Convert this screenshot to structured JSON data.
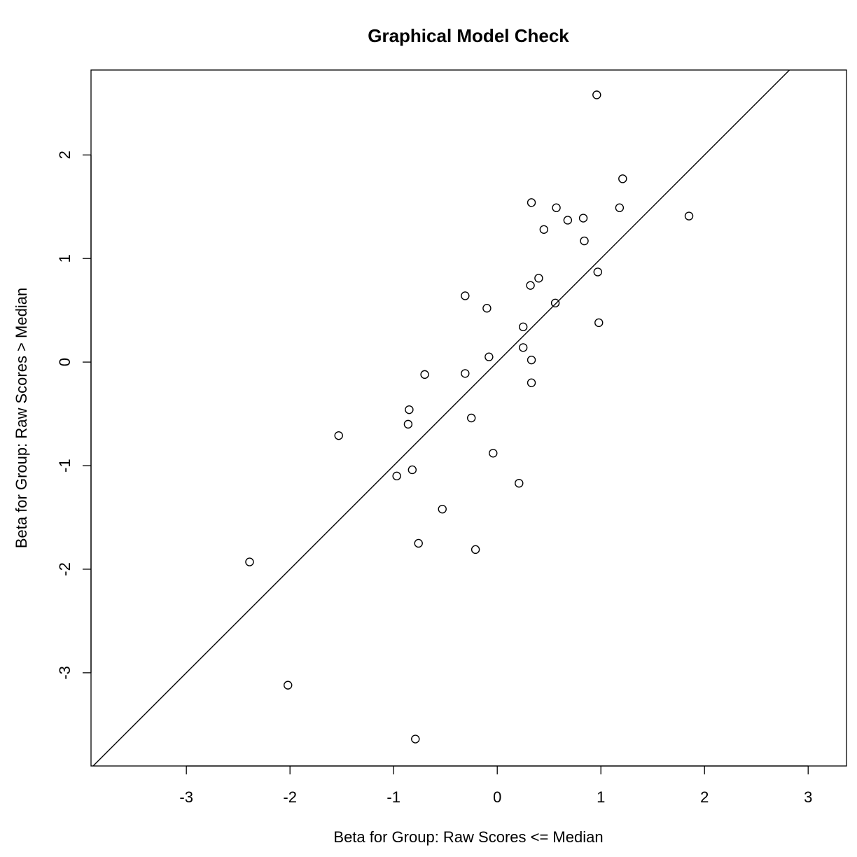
{
  "chart_data": {
    "type": "scatter",
    "title": "Graphical Model Check",
    "xlabel": "Beta for Group: Raw Scores <= Median",
    "ylabel": "Beta for Group: Raw Scores > Median",
    "xlim": [
      -3.92,
      3.37
    ],
    "ylim": [
      -3.9,
      2.82
    ],
    "x_ticks": [
      -3,
      -2,
      -1,
      0,
      1,
      2,
      3
    ],
    "y_ticks": [
      -3,
      -2,
      -1,
      0,
      1,
      2
    ],
    "reference_line": {
      "intercept": 0,
      "slope": 1
    },
    "points": [
      {
        "x": 0.96,
        "y": 2.58
      },
      {
        "x": 1.21,
        "y": 1.77
      },
      {
        "x": 0.33,
        "y": 1.54
      },
      {
        "x": 0.57,
        "y": 1.49
      },
      {
        "x": 1.18,
        "y": 1.49
      },
      {
        "x": 1.85,
        "y": 1.41
      },
      {
        "x": 0.83,
        "y": 1.39
      },
      {
        "x": 0.68,
        "y": 1.37
      },
      {
        "x": 0.45,
        "y": 1.28
      },
      {
        "x": 0.84,
        "y": 1.17
      },
      {
        "x": 0.97,
        "y": 0.87
      },
      {
        "x": 0.4,
        "y": 0.81
      },
      {
        "x": 0.32,
        "y": 0.74
      },
      {
        "x": -0.31,
        "y": 0.64
      },
      {
        "x": 0.56,
        "y": 0.57
      },
      {
        "x": -0.1,
        "y": 0.52
      },
      {
        "x": 0.98,
        "y": 0.38
      },
      {
        "x": 0.25,
        "y": 0.34
      },
      {
        "x": 0.25,
        "y": 0.14
      },
      {
        "x": -0.08,
        "y": 0.05
      },
      {
        "x": 0.33,
        "y": 0.02
      },
      {
        "x": -0.31,
        "y": -0.11
      },
      {
        "x": -0.7,
        "y": -0.12
      },
      {
        "x": 0.33,
        "y": -0.2
      },
      {
        "x": -0.85,
        "y": -0.46
      },
      {
        "x": -0.25,
        "y": -0.54
      },
      {
        "x": -0.86,
        "y": -0.6
      },
      {
        "x": -1.53,
        "y": -0.71
      },
      {
        "x": -0.04,
        "y": -0.88
      },
      {
        "x": -0.82,
        "y": -1.04
      },
      {
        "x": -0.97,
        "y": -1.1
      },
      {
        "x": 0.21,
        "y": -1.17
      },
      {
        "x": -0.53,
        "y": -1.42
      },
      {
        "x": -0.76,
        "y": -1.75
      },
      {
        "x": -0.21,
        "y": -1.81
      },
      {
        "x": -2.39,
        "y": -1.93
      },
      {
        "x": -2.02,
        "y": -3.12
      },
      {
        "x": -0.79,
        "y": -3.64
      }
    ]
  }
}
